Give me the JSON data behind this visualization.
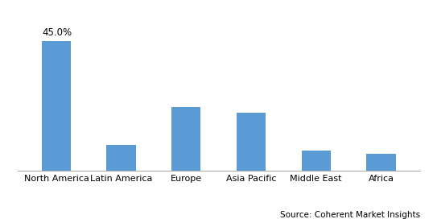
{
  "categories": [
    "North America",
    "Latin America",
    "Europe",
    "Asia Pacific",
    "Middle East",
    "Africa"
  ],
  "values": [
    45.0,
    9.0,
    22.0,
    20.0,
    7.0,
    6.0
  ],
  "bar_color": "#5b9bd5",
  "annotation_text": "45.0%",
  "annotation_value_index": 0,
  "ylim": [
    0,
    50
  ],
  "source_text": "Source: Coherent Market Insights",
  "grid_color": "#d0d0d0",
  "background_color": "#ffffff",
  "label_fontsize": 8,
  "annotation_fontsize": 8.5,
  "source_fontsize": 7.5,
  "bar_width": 0.45
}
